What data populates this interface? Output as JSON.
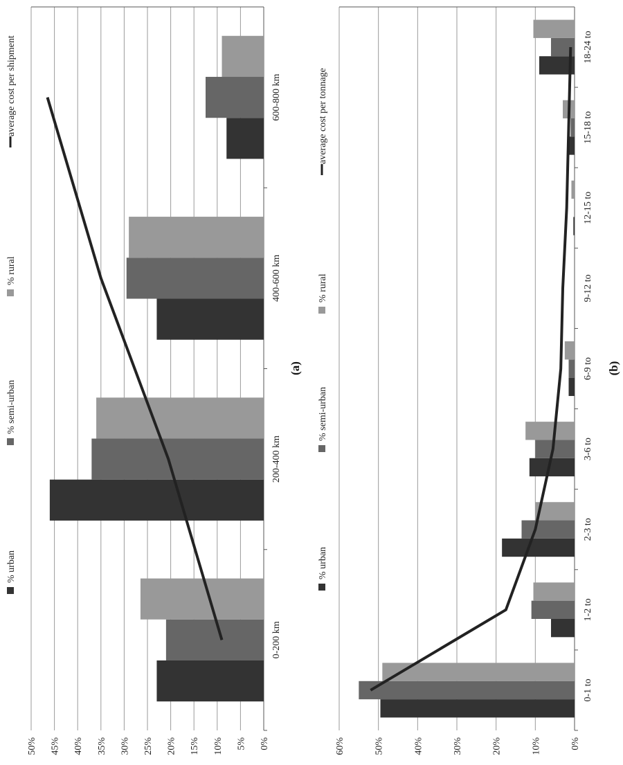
{
  "chart_data": [
    {
      "type": "bar",
      "panel_label": "(a)",
      "categories": [
        "0-200 km",
        "200-400 km",
        "400-600 km",
        "600-800 km"
      ],
      "series": [
        {
          "name": "% urban",
          "color": "#333333",
          "values": [
            23,
            46,
            23,
            8
          ]
        },
        {
          "name": "% semi-urban",
          "color": "#666666",
          "values": [
            21,
            37,
            29.5,
            12.5
          ]
        },
        {
          "name": "% rural",
          "color": "#999999",
          "values": [
            26.5,
            36,
            29,
            9
          ]
        }
      ],
      "line": {
        "name": "average cost per shipment",
        "color": "#222222",
        "values": [
          9,
          20.5,
          35,
          46.5
        ]
      },
      "ylim": [
        0,
        50
      ],
      "yticks": [
        "0%",
        "5%",
        "10%",
        "15%",
        "20%",
        "25%",
        "30%",
        "35%",
        "40%",
        "45%",
        "50%"
      ],
      "grid": true,
      "legend_position": "top",
      "orientation": "rotated-90"
    },
    {
      "type": "bar",
      "panel_label": "(b)",
      "categories": [
        "0-1 to",
        "1-2 to",
        "2-3 to",
        "3-6 to",
        "6-9 to",
        "9-12 to",
        "12-15 to",
        "15-18 to",
        "18-24 to"
      ],
      "series": [
        {
          "name": "% urban",
          "color": "#333333",
          "values": [
            49.5,
            6,
            18.5,
            11.5,
            1.5,
            0,
            0.3,
            1.5,
            9
          ]
        },
        {
          "name": "% semi-urban",
          "color": "#666666",
          "values": [
            55,
            11,
            13.5,
            10,
            1.5,
            0,
            0,
            1,
            6
          ]
        },
        {
          "name": "% rural",
          "color": "#999999",
          "values": [
            49,
            10.5,
            10,
            12.5,
            2.5,
            0,
            0.8,
            3,
            10.5
          ]
        }
      ],
      "line": {
        "name": "average cost per tonnage",
        "color": "#222222",
        "values": [
          52,
          17.5,
          10,
          5.5,
          3.5,
          3,
          2,
          1.5,
          1
        ]
      },
      "ylim": [
        0,
        60
      ],
      "yticks": [
        "0%",
        "10%",
        "20%",
        "30%",
        "40%",
        "50%",
        "60%"
      ],
      "grid": true,
      "legend_position": "top",
      "orientation": "rotated-90"
    }
  ]
}
